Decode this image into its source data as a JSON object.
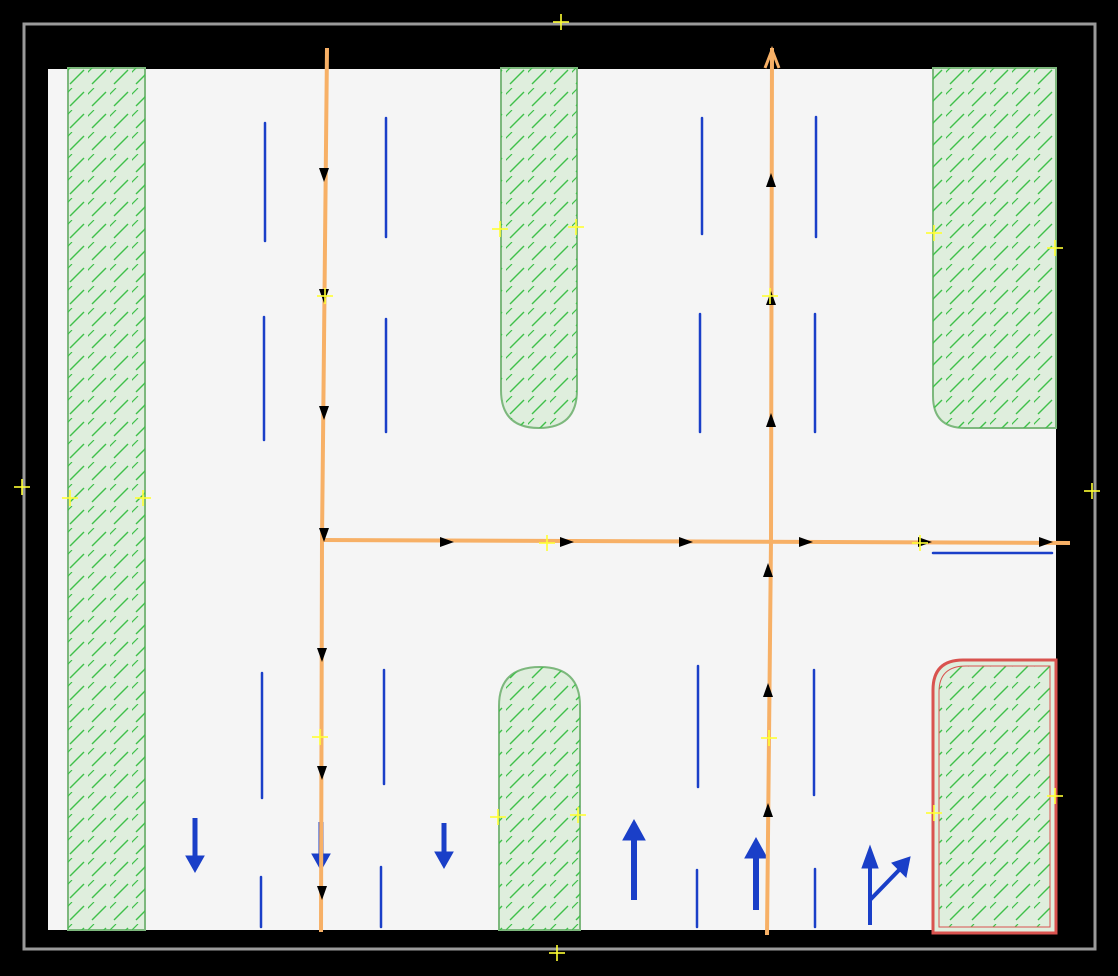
{
  "colors": {
    "background": "#000000",
    "paper": "#f5f5f5",
    "canvas_border": "#9a9a9a",
    "island_fill": "#dfeedd",
    "island_stroke": "#7db87d",
    "hatch": "#3fc04a",
    "selected_stroke": "#d9534f",
    "lane_marking": "#1a3fc8",
    "path": "#f7b066",
    "path_arrow": "#000000",
    "handle": "#ffff33"
  },
  "islands": [
    {
      "name": "left-median-island",
      "selected": false
    },
    {
      "name": "top-middle-island",
      "selected": false
    },
    {
      "name": "top-right-island",
      "selected": false
    },
    {
      "name": "bottom-middle-island",
      "selected": false
    },
    {
      "name": "bottom-right-island",
      "selected": true
    }
  ],
  "lane_arrows": [
    {
      "name": "lane-arrow-down-1",
      "direction": "down"
    },
    {
      "name": "lane-arrow-down-2",
      "direction": "down"
    },
    {
      "name": "lane-arrow-down-3",
      "direction": "down"
    },
    {
      "name": "lane-arrow-up-1",
      "direction": "up"
    },
    {
      "name": "lane-arrow-up-2",
      "direction": "up"
    },
    {
      "name": "lane-arrow-straight-right",
      "direction": "straight-or-right"
    }
  ],
  "paths": [
    {
      "name": "path-southbound",
      "direction": "down"
    },
    {
      "name": "path-northbound",
      "direction": "up"
    },
    {
      "name": "path-eastbound-turn",
      "direction": "right"
    }
  ]
}
